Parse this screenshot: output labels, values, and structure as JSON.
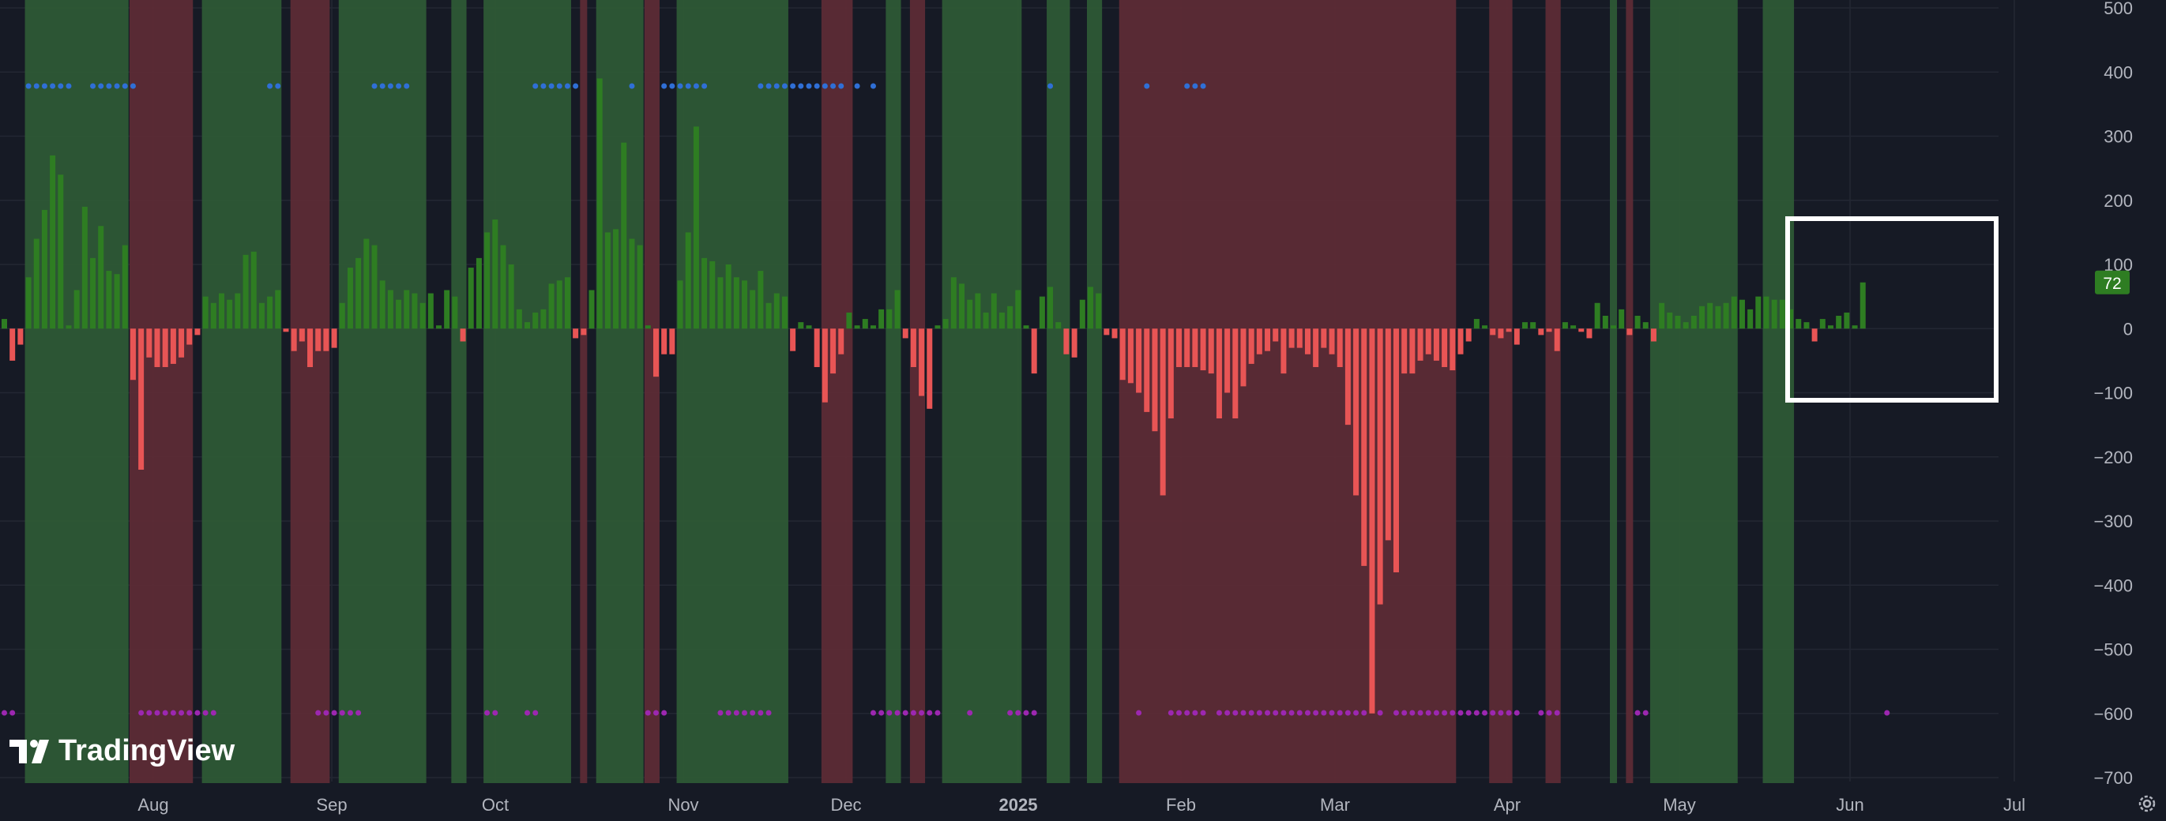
{
  "chart_data": {
    "type": "bar",
    "ylim": [
      -700,
      500
    ],
    "y_ticks": [
      500,
      400,
      300,
      200,
      100,
      0,
      -100,
      -200,
      -300,
      -400,
      -500,
      -600,
      -700
    ],
    "x_labels": [
      "Aug",
      "Sep",
      "Oct",
      "Nov",
      "Dec",
      "2025",
      "Feb",
      "Mar",
      "Apr",
      "May",
      "Jun",
      "Jul"
    ],
    "last_value": "72",
    "positive_color": "#2e7d22",
    "negative_color": "#e85555",
    "green_zone_color": "#2f5a35",
    "red_zone_color": "#5e2b35",
    "blue_marker_color": "#2f6fd6",
    "purple_marker_color": "#9c27b0",
    "values": [
      15,
      -50,
      -25,
      80,
      140,
      185,
      270,
      240,
      5,
      60,
      190,
      110,
      160,
      90,
      85,
      130,
      -80,
      -220,
      -45,
      -60,
      -60,
      -55,
      -45,
      -25,
      -10,
      50,
      40,
      55,
      45,
      55,
      115,
      120,
      40,
      50,
      60,
      -5,
      -35,
      -20,
      -60,
      -35,
      -35,
      -30,
      40,
      95,
      110,
      140,
      130,
      75,
      60,
      45,
      60,
      55,
      40,
      55,
      5,
      60,
      50,
      -20,
      95,
      110,
      150,
      170,
      130,
      100,
      30,
      10,
      25,
      30,
      70,
      75,
      80,
      -15,
      -10,
      60,
      390,
      150,
      155,
      290,
      140,
      130,
      5,
      -75,
      -40,
      -40,
      75,
      150,
      315,
      110,
      105,
      80,
      100,
      80,
      75,
      60,
      90,
      40,
      55,
      50,
      -35,
      10,
      5,
      -60,
      -115,
      -70,
      -40,
      25,
      5,
      15,
      5,
      30,
      30,
      60,
      -15,
      -60,
      -105,
      -125,
      5,
      15,
      80,
      70,
      45,
      55,
      25,
      55,
      25,
      35,
      60,
      5,
      -70,
      50,
      65,
      10,
      -40,
      -45,
      45,
      65,
      55,
      -10,
      -15,
      -80,
      -85,
      -100,
      -130,
      -160,
      -260,
      -140,
      -60,
      -60,
      -60,
      -65,
      -70,
      -140,
      -100,
      -140,
      -90,
      -55,
      -40,
      -35,
      -20,
      -70,
      -30,
      -30,
      -40,
      -60,
      -30,
      -40,
      -60,
      -150,
      -260,
      -370,
      -600,
      -430,
      -330,
      -380,
      -70,
      -70,
      -50,
      -40,
      -50,
      -60,
      -65,
      -40,
      -20,
      15,
      5,
      -10,
      -15,
      -5,
      -25,
      10,
      10,
      -10,
      -5,
      -35,
      10,
      5,
      -5,
      -15,
      40,
      20,
      5,
      30,
      -10,
      20,
      10,
      -20,
      40,
      25,
      20,
      10,
      20,
      35,
      40,
      35,
      40,
      50,
      45,
      30,
      50,
      50,
      45,
      45,
      30,
      15,
      10,
      -20,
      15,
      5,
      20,
      25,
      5,
      72
    ],
    "zones": [
      {
        "color": "green",
        "from": 3,
        "to": 15
      },
      {
        "color": "red",
        "from": 16,
        "to": 23
      },
      {
        "color": "green",
        "from": 25,
        "to": 34
      },
      {
        "color": "red",
        "from": 36,
        "to": 40
      },
      {
        "color": "green",
        "from": 42,
        "to": 52
      },
      {
        "color": "green",
        "from": 56,
        "to": 57
      },
      {
        "color": "green",
        "from": 60,
        "to": 70
      },
      {
        "color": "red",
        "from": 72,
        "to": 72
      },
      {
        "color": "green",
        "from": 74,
        "to": 79
      },
      {
        "color": "red",
        "from": 80,
        "to": 81
      },
      {
        "color": "green",
        "from": 84,
        "to": 97
      },
      {
        "color": "red",
        "from": 102,
        "to": 105
      },
      {
        "color": "green",
        "from": 110,
        "to": 111
      },
      {
        "color": "red",
        "from": 113,
        "to": 114
      },
      {
        "color": "green",
        "from": 117,
        "to": 126
      },
      {
        "color": "green",
        "from": 130,
        "to": 132
      },
      {
        "color": "green",
        "from": 135,
        "to": 136
      },
      {
        "color": "red",
        "from": 139,
        "to": 180
      },
      {
        "color": "red",
        "from": 185,
        "to": 187
      },
      {
        "color": "red",
        "from": 192,
        "to": 193
      },
      {
        "color": "green",
        "from": 200,
        "to": 200
      },
      {
        "color": "red",
        "from": 202,
        "to": 202
      },
      {
        "color": "green",
        "from": 205,
        "to": 215
      },
      {
        "color": "green",
        "from": 219,
        "to": 222
      }
    ],
    "blue_markers": [
      3,
      4,
      5,
      6,
      7,
      8,
      11,
      12,
      13,
      14,
      15,
      16,
      33,
      34,
      46,
      47,
      48,
      49,
      50,
      66,
      67,
      68,
      69,
      70,
      71,
      78,
      82,
      83,
      84,
      85,
      86,
      87,
      94,
      95,
      96,
      97,
      98,
      99,
      100,
      101,
      102,
      103,
      104,
      106,
      108,
      130,
      142,
      147,
      148,
      149
    ],
    "purple_markers": [
      0,
      1,
      17,
      18,
      19,
      20,
      21,
      22,
      23,
      24,
      25,
      26,
      39,
      40,
      41,
      42,
      43,
      44,
      60,
      61,
      65,
      66,
      80,
      81,
      82,
      89,
      90,
      91,
      92,
      93,
      94,
      95,
      108,
      109,
      110,
      111,
      112,
      113,
      114,
      115,
      116,
      120,
      125,
      126,
      127,
      128,
      141,
      145,
      146,
      147,
      148,
      149,
      151,
      152,
      153,
      154,
      155,
      156,
      157,
      158,
      159,
      160,
      161,
      162,
      163,
      164,
      165,
      166,
      167,
      168,
      169,
      171,
      173,
      174,
      175,
      176,
      177,
      178,
      179,
      180,
      181,
      182,
      183,
      184,
      185,
      186,
      187,
      188,
      191,
      192,
      193,
      203,
      204,
      234
    ]
  },
  "branding": {
    "logo_text": "TradingView"
  },
  "icons": {
    "settings": "gear-icon"
  }
}
